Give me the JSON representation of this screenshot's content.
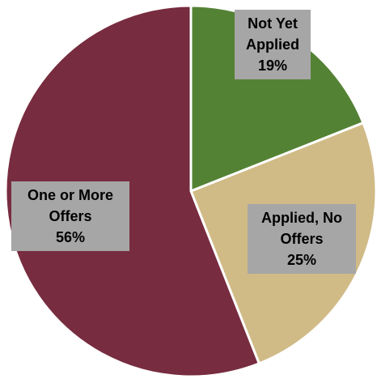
{
  "chart_data": {
    "type": "pie",
    "title": "",
    "slices": [
      {
        "label_lines": [
          "Not Yet",
          "Applied"
        ],
        "value": 19,
        "percent_label": "19%",
        "color": "#548235"
      },
      {
        "label_lines": [
          "Applied, No",
          "Offers"
        ],
        "value": 25,
        "percent_label": "25%",
        "color": "#d0bb87"
      },
      {
        "label_lines": [
          "One or More",
          "Offers"
        ],
        "value": 56,
        "percent_label": "56%",
        "color": "#772c3f"
      }
    ],
    "start_angle_deg": 0,
    "direction": "clockwise",
    "separator_color": "#ffffff",
    "label_background": "#a6a6a6"
  }
}
